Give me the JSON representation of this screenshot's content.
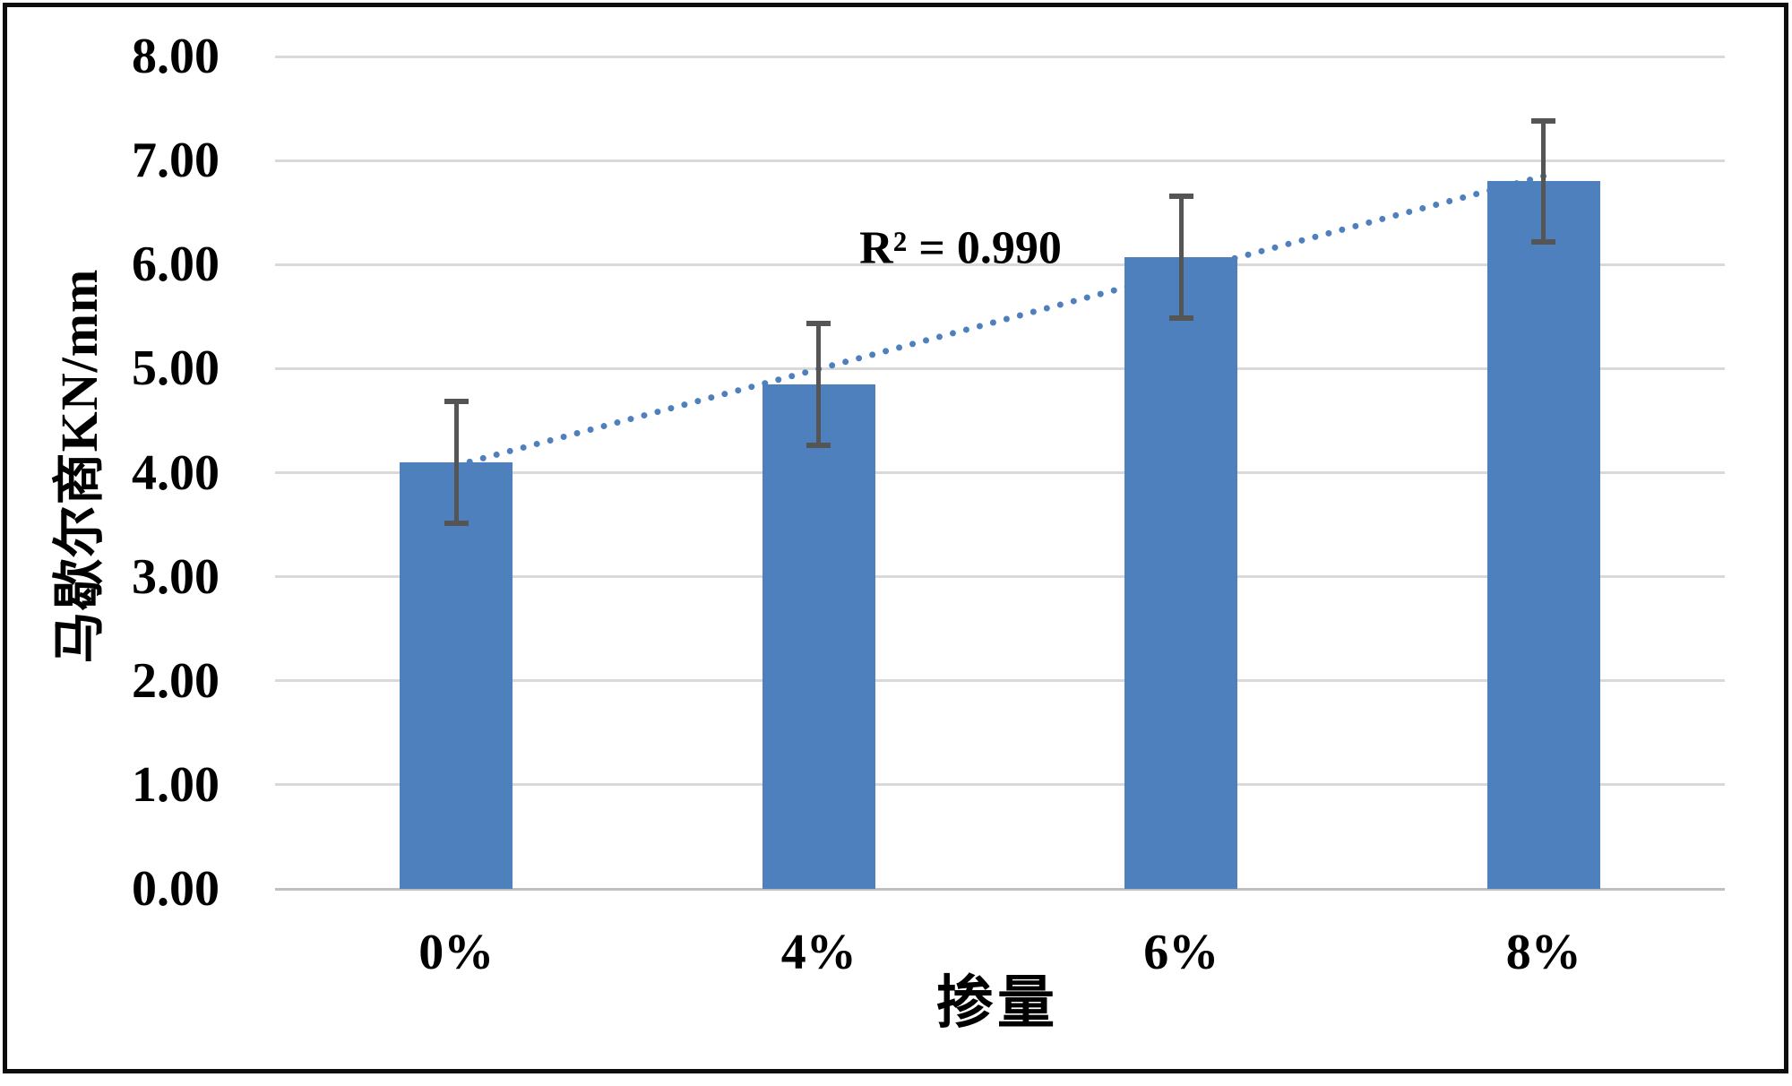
{
  "chart_data": {
    "type": "bar",
    "title": "",
    "categories": [
      "0%",
      "4%",
      "6%",
      "8%"
    ],
    "values": [
      4.1,
      4.85,
      6.07,
      6.8
    ],
    "error_bars": [
      0.61,
      0.61,
      0.61,
      0.61
    ],
    "ylabel": "马歇尔商KN/mm",
    "xlabel": "掺量",
    "ylim": [
      0,
      8
    ],
    "ytick_labels": [
      "0.00",
      "1.00",
      "2.00",
      "3.00",
      "4.00",
      "5.00",
      "6.00",
      "7.00",
      "8.00"
    ],
    "grid": true,
    "legend": "none",
    "trendline": {
      "label": "R² = 0.990",
      "r_squared": 0.99,
      "style": "dotted",
      "start_value": 4.07,
      "end_value": 6.85
    },
    "colors": {
      "bar": "#4E80BE",
      "trendline": "#4E80BE",
      "gridline": "#D9D9D9",
      "axis_line": "#BFBFBF",
      "error_bar": "#555555",
      "text": "#000000",
      "frame_border": "#0D0D0D"
    }
  }
}
